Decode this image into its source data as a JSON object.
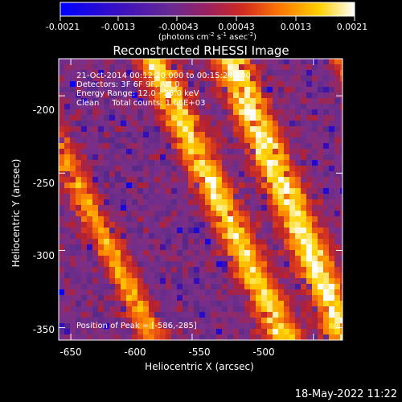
{
  "colorbar": {
    "ticks": [
      "-0.0021",
      "-0.0013",
      "-0.00043",
      "0.00043",
      "0.0013",
      "0.0021"
    ],
    "units_main": "(photons cm",
    "units_exp1": "-2",
    "units_mid1": " s",
    "units_exp2": "-1",
    "units_mid2": " asec",
    "units_exp3": "-2",
    "units_end": ")"
  },
  "chart_data": {
    "type": "heatmap",
    "title": "Reconstructed RHESSI Image",
    "xlabel": "Heliocentric X (arcsec)",
    "ylabel": "Heliocentric Y (arcsec)",
    "xlim": [
      -655,
      -538
    ],
    "ylim": [
      -358,
      -176
    ],
    "x_ticks": [
      "-650",
      "-600",
      "-550",
      "-500"
    ],
    "y_ticks": [
      "-200",
      "-250",
      "-300",
      "-350"
    ],
    "colorbar_range": [
      -0.0021,
      0.0021
    ],
    "colormap": [
      "#0000ff",
      "#3a0fb0",
      "#5a2a88",
      "#7a2f8a",
      "#b4202f",
      "#e0401a",
      "#ff8a00",
      "#ffd400",
      "#ffffff"
    ],
    "annotations": [
      "21-Oct-2014 00:12:20.000 to 00:15:24.000",
      "Detectors: 3F 6F 9F, Att 0",
      "Energy Range: 12.0 - 25.0 keV",
      "Clean     Total counts: 1.06E+03"
    ],
    "peak_label": "Position of Peak = [-586,-285]",
    "peak": [
      -586,
      -285
    ]
  },
  "footer_timestamp": "18-May-2022 11:22"
}
